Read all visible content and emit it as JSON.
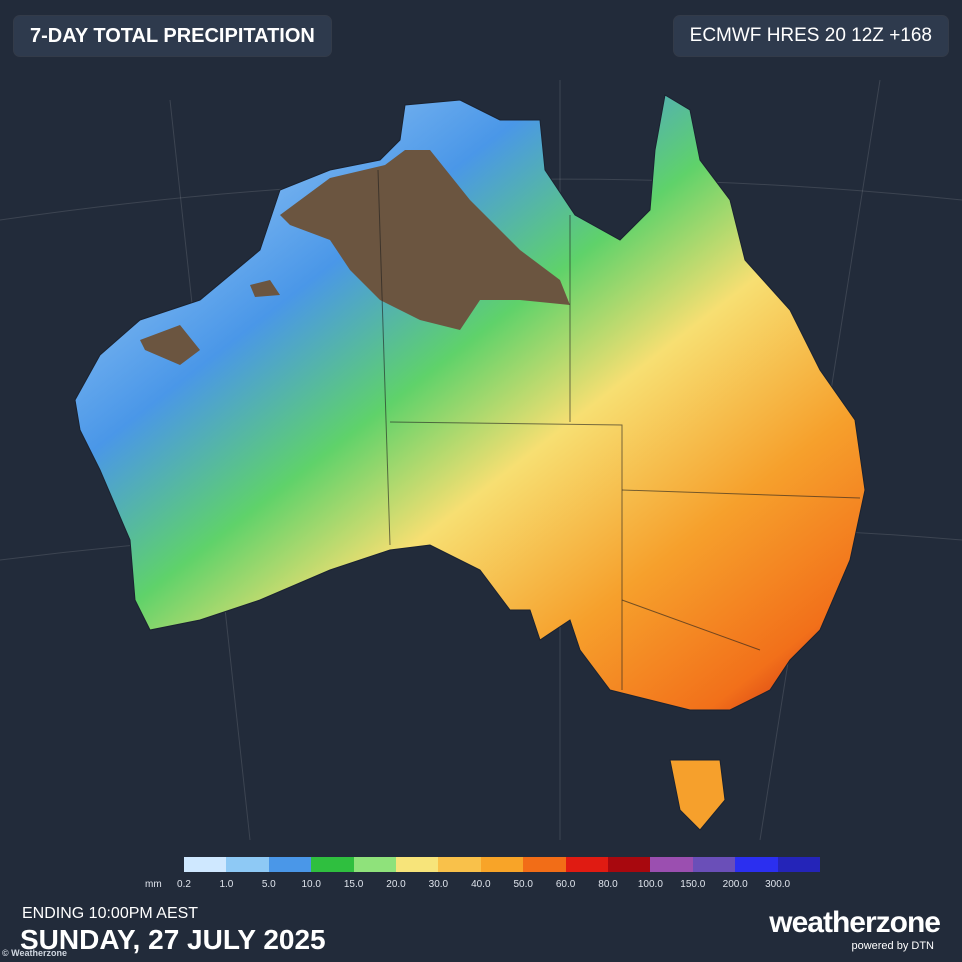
{
  "header": {
    "title": "7-DAY TOTAL PRECIPITATION",
    "model": "ECMWF HRES 20 12Z +168"
  },
  "legend": {
    "unit": "mm",
    "items": [
      {
        "label": "0.2",
        "color": "#cfe8ff"
      },
      {
        "label": "1.0",
        "color": "#8ec9f5"
      },
      {
        "label": "5.0",
        "color": "#4a97e8"
      },
      {
        "label": "10.0",
        "color": "#2fbf3f"
      },
      {
        "label": "15.0",
        "color": "#8fe27b"
      },
      {
        "label": "20.0",
        "color": "#f7e47a"
      },
      {
        "label": "30.0",
        "color": "#f9c14a"
      },
      {
        "label": "40.0",
        "color": "#f8a428"
      },
      {
        "label": "50.0",
        "color": "#f26d17"
      },
      {
        "label": "60.0",
        "color": "#e01b12"
      },
      {
        "label": "80.0",
        "color": "#a8080e"
      },
      {
        "label": "100.0",
        "color": "#9b4fb0"
      },
      {
        "label": "150.0",
        "color": "#6a4fb8"
      },
      {
        "label": "200.0",
        "color": "#2b2ff0"
      },
      {
        "label": "300.0",
        "color": "#2424b8"
      }
    ]
  },
  "footer": {
    "ending": "ENDING 10:00PM AEST",
    "date": "SUNDAY, 27 JULY 2025",
    "copyright": "© Weatherzone",
    "logo": "weatherzone",
    "powered_by": "powered by DTN"
  }
}
